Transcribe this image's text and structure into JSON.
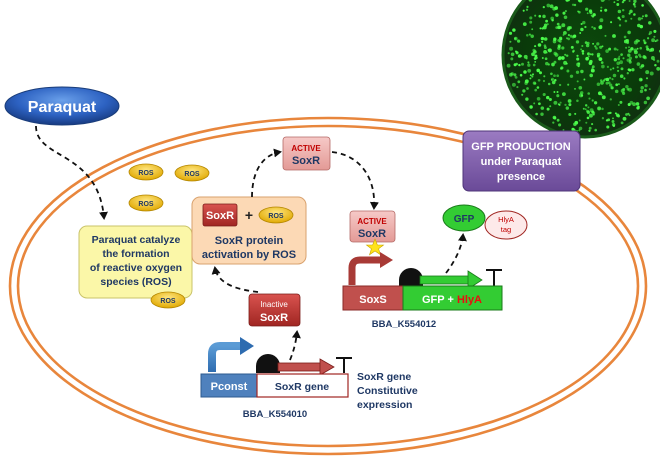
{
  "inducer": {
    "label": "Paraquat"
  },
  "ros": {
    "label": "ROS"
  },
  "catalysis": {
    "lines": [
      "Paraquat catalyze",
      "the formation",
      "of reactive oxygen",
      "species (ROS)"
    ]
  },
  "activation": {
    "soxr": "SoxR",
    "plus": "+",
    "ros": "ROS",
    "lines": [
      "SoxR protein",
      "activation by ROS"
    ]
  },
  "inactive_soxr": {
    "state": "Inactive",
    "name": "SoxR"
  },
  "active_soxr_top": {
    "state": "ACTIVE",
    "name": "SoxR"
  },
  "active_soxr_bound": {
    "state": "ACTIVE",
    "name": "SoxR"
  },
  "gfp_production": {
    "lines": [
      "GFP PRODUCTION",
      "under Paraquat",
      "presence"
    ]
  },
  "gfp_protein": {
    "label": "GFP",
    "tag_lines": [
      "HlyA",
      "tag"
    ]
  },
  "reporter_construct": {
    "promoter": "SoxS",
    "gene_prefix": "GFP + ",
    "gene_highlight": "HlyA",
    "part_id": "BBA_K554012",
    "colors": {
      "promoter": "#c0504d",
      "gene": "#33cc33",
      "highlight": "#e81010"
    }
  },
  "constitutive_construct": {
    "promoter": "Pconst",
    "gene": "SoxR gene",
    "part_id": "BBA_K554010",
    "note_lines": [
      "SoxR gene",
      "Constitutive",
      "expression"
    ],
    "colors": {
      "promoter": "#4f81bd",
      "gene": "#ffffff"
    }
  },
  "colors": {
    "cell_membrane": "#e8863c",
    "navy": "#1f3864",
    "ros_fill": "#f2c200"
  }
}
